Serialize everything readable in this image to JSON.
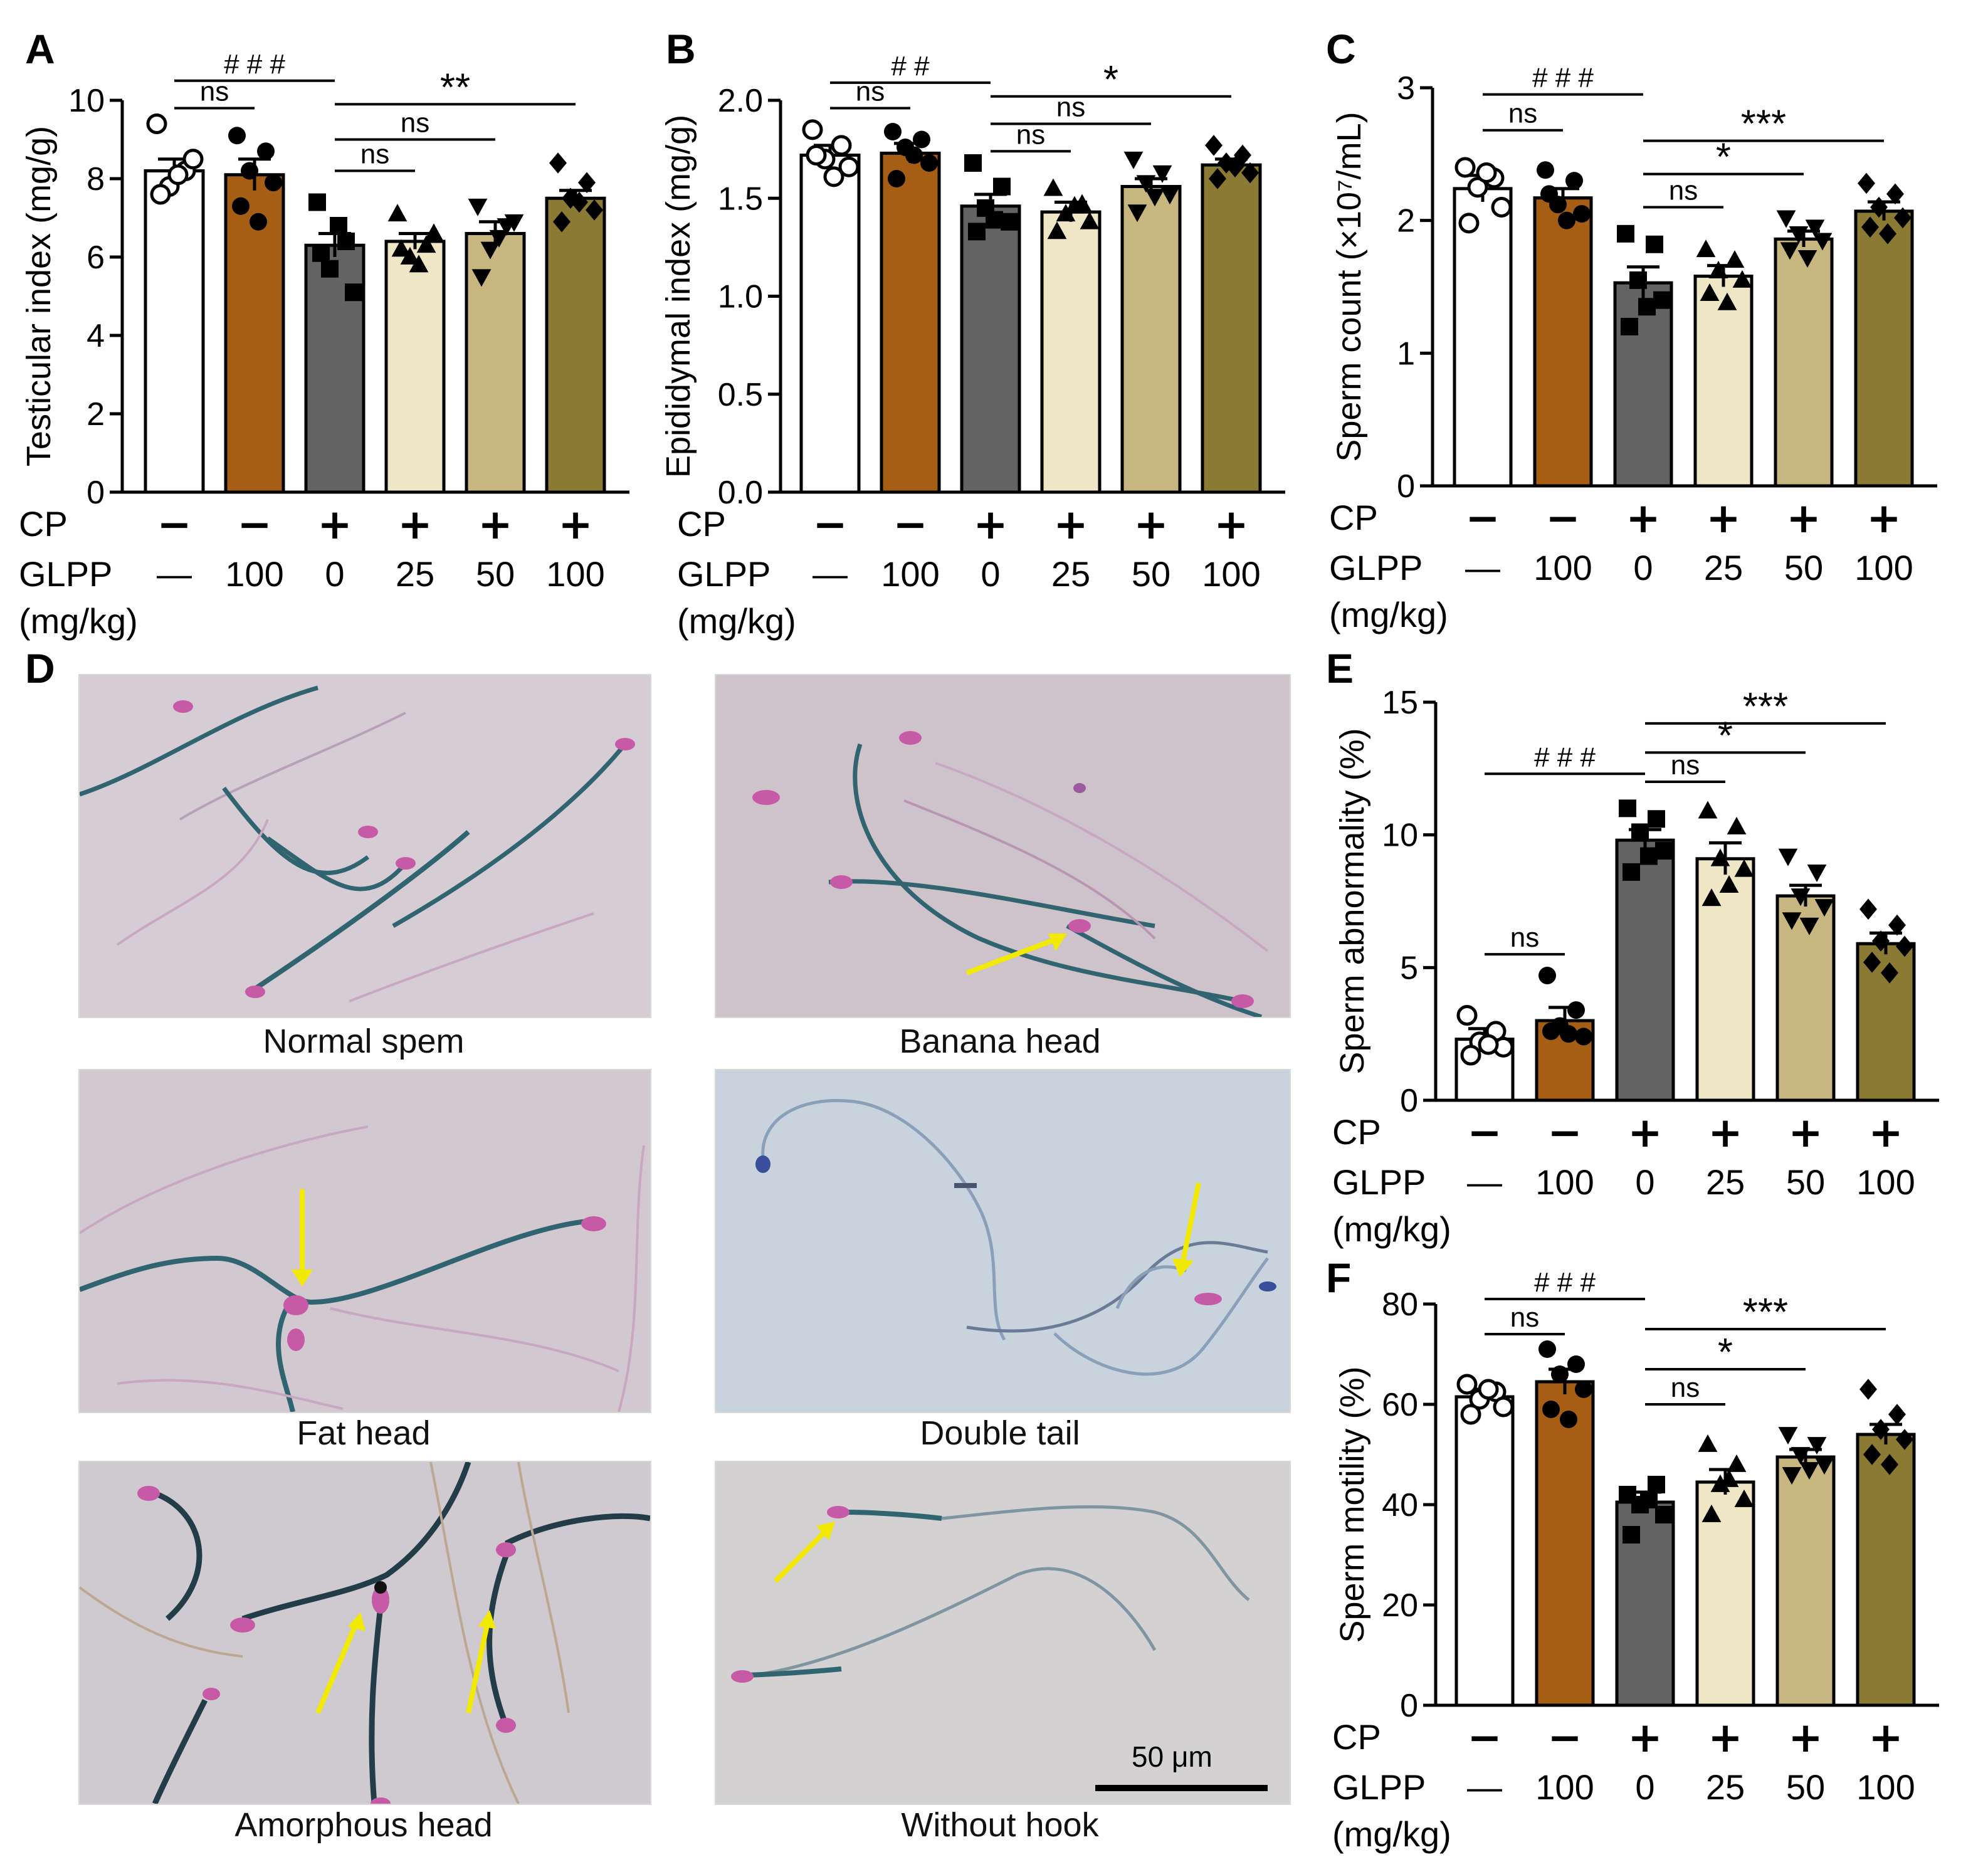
{
  "colors": {
    "groups": [
      "#ffffff",
      "#a55e14",
      "#636363",
      "#efe6c6",
      "#c8b681",
      "#8b7a33"
    ],
    "bar_edge": "#000000",
    "arrow": "#f2ea00"
  },
  "panels": [
    {
      "letter": "A"
    },
    {
      "letter": "B"
    },
    {
      "letter": "C"
    },
    {
      "letter": "D"
    },
    {
      "letter": "E"
    },
    {
      "letter": "F"
    }
  ],
  "treatment_rows": {
    "cp_label": "CP",
    "glpp_label": "GLPP",
    "unit_label": "(mg/kg)",
    "cp": [
      "−",
      "−",
      "+",
      "+",
      "+",
      "+"
    ],
    "glpp": [
      "—",
      "100",
      "0",
      "25",
      "50",
      "100"
    ]
  },
  "chart_data": [
    {
      "id": "A",
      "type": "bar",
      "ylabel": "Testicular index (mg/g)",
      "ylim": [
        0,
        10
      ],
      "yticks": [
        0,
        2,
        4,
        6,
        8,
        10
      ],
      "categories": [
        "CP−/GLPP—",
        "CP−/GLPP100",
        "CP+/GLPP0",
        "CP+/GLPP25",
        "CP+/GLPP50",
        "CP+/GLPP100"
      ],
      "values": [
        8.2,
        8.1,
        6.3,
        6.4,
        6.6,
        7.5
      ],
      "errors": [
        0.3,
        0.4,
        0.3,
        0.2,
        0.3,
        0.2
      ],
      "points": [
        [
          9.4,
          8.2,
          7.8,
          8.5,
          7.6,
          8.1
        ],
        [
          9.1,
          8.7,
          8.2,
          7.9,
          7.3,
          6.9
        ],
        [
          7.4,
          6.4,
          5.7,
          5.1,
          6.1,
          6.8
        ],
        [
          7.1,
          6.3,
          6.0,
          6.6,
          6.2,
          5.8
        ],
        [
          7.3,
          6.8,
          6.2,
          6.9,
          5.5,
          6.5
        ],
        [
          8.4,
          7.9,
          7.5,
          7.2,
          6.9,
          7.4
        ]
      ],
      "markers": [
        "circle-open",
        "circle",
        "square",
        "triangle",
        "triangle-down",
        "diamond"
      ],
      "annotations": [
        {
          "label": "###",
          "from": 0,
          "to": 2,
          "y": 10.5
        },
        {
          "label": "ns",
          "from": 0,
          "to": 1,
          "y": 9.8
        },
        {
          "label": "**",
          "from": 2,
          "to": 5,
          "y": 9.9
        },
        {
          "label": "ns",
          "from": 2,
          "to": 4,
          "y": 9.0
        },
        {
          "label": "ns",
          "from": 2,
          "to": 3,
          "y": 8.2
        }
      ]
    },
    {
      "id": "B",
      "type": "bar",
      "ylabel": "Epididymal index (mg/g)",
      "ylim": [
        0,
        2.0
      ],
      "yticks": [
        0.0,
        0.5,
        1.0,
        1.5,
        2.0
      ],
      "ytick_labels": [
        "0.0",
        "0.5",
        "1.0",
        "1.5",
        "2.0"
      ],
      "categories": [
        "CP−/GLPP—",
        "CP−/GLPP100",
        "CP+/GLPP0",
        "CP+/GLPP25",
        "CP+/GLPP50",
        "CP+/GLPP100"
      ],
      "values": [
        1.72,
        1.73,
        1.46,
        1.43,
        1.56,
        1.67
      ],
      "errors": [
        0.05,
        0.05,
        0.06,
        0.05,
        0.04,
        0.03
      ],
      "points": [
        [
          1.85,
          1.77,
          1.7,
          1.66,
          1.72,
          1.61
        ],
        [
          1.84,
          1.8,
          1.76,
          1.68,
          1.6,
          1.72
        ],
        [
          1.68,
          1.56,
          1.45,
          1.38,
          1.33,
          1.39
        ],
        [
          1.55,
          1.47,
          1.42,
          1.38,
          1.33,
          1.46
        ],
        [
          1.7,
          1.63,
          1.58,
          1.52,
          1.43,
          1.51
        ],
        [
          1.77,
          1.72,
          1.68,
          1.63,
          1.6,
          1.66
        ]
      ],
      "markers": [
        "circle-open",
        "circle",
        "square",
        "triangle",
        "triangle-down",
        "diamond"
      ],
      "annotations": [
        {
          "label": "##",
          "from": 0,
          "to": 2,
          "y": 2.09
        },
        {
          "label": "ns",
          "from": 0,
          "to": 1,
          "y": 1.96
        },
        {
          "label": "*",
          "from": 2,
          "to": 5,
          "y": 2.02
        },
        {
          "label": "ns",
          "from": 2,
          "to": 4,
          "y": 1.88
        },
        {
          "label": "ns",
          "from": 2,
          "to": 3,
          "y": 1.74
        }
      ]
    },
    {
      "id": "C",
      "type": "bar",
      "ylabel": "Sperm count (×10⁷/mL)",
      "ylim": [
        0,
        3
      ],
      "yticks": [
        0,
        1,
        2,
        3
      ],
      "categories": [
        "CP−/GLPP—",
        "CP−/GLPP100",
        "CP+/GLPP0",
        "CP+/GLPP25",
        "CP+/GLPP50",
        "CP+/GLPP100"
      ],
      "values": [
        2.24,
        2.17,
        1.53,
        1.58,
        1.86,
        2.07
      ],
      "errors": [
        0.1,
        0.07,
        0.12,
        0.08,
        0.06,
        0.07
      ],
      "points": [
        [
          2.4,
          2.32,
          2.25,
          2.1,
          1.98,
          2.36
        ],
        [
          2.38,
          2.3,
          2.12,
          2.05,
          2.2,
          2.0
        ],
        [
          1.9,
          1.82,
          1.55,
          1.4,
          1.2,
          1.35
        ],
        [
          1.78,
          1.7,
          1.62,
          1.55,
          1.45,
          1.38
        ],
        [
          2.02,
          1.95,
          1.9,
          1.85,
          1.78,
          1.72
        ],
        [
          2.28,
          2.2,
          2.1,
          2.02,
          1.95,
          1.9
        ]
      ],
      "markers": [
        "circle-open",
        "circle",
        "square",
        "triangle",
        "triangle-down",
        "diamond"
      ],
      "annotations": [
        {
          "label": "###",
          "from": 0,
          "to": 2,
          "y": 2.95
        },
        {
          "label": "ns",
          "from": 0,
          "to": 1,
          "y": 2.68
        },
        {
          "label": "***",
          "from": 2,
          "to": 5,
          "y": 2.6
        },
        {
          "label": "*",
          "from": 2,
          "to": 4,
          "y": 2.35
        },
        {
          "label": "ns",
          "from": 2,
          "to": 3,
          "y": 2.1
        }
      ]
    },
    {
      "id": "E",
      "type": "bar",
      "ylabel": "Sperm abnormality (%)",
      "ylim": [
        0,
        15
      ],
      "yticks": [
        0,
        5,
        10,
        15
      ],
      "categories": [
        "CP−/GLPP—",
        "CP−/GLPP100",
        "CP+/GLPP0",
        "CP+/GLPP25",
        "CP+/GLPP50",
        "CP+/GLPP100"
      ],
      "values": [
        2.3,
        3.0,
        9.8,
        9.1,
        7.7,
        5.9
      ],
      "errors": [
        0.4,
        0.5,
        0.4,
        0.6,
        0.4,
        0.4
      ],
      "points": [
        [
          3.2,
          2.6,
          2.2,
          2.0,
          1.7,
          2.1
        ],
        [
          4.7,
          3.4,
          2.8,
          2.4,
          2.6,
          2.5
        ],
        [
          11.0,
          10.6,
          10.1,
          9.4,
          8.6,
          9.2
        ],
        [
          10.9,
          10.3,
          9.1,
          8.7,
          7.6,
          8.1
        ],
        [
          9.2,
          8.6,
          7.7,
          7.3,
          6.8,
          6.6
        ],
        [
          7.2,
          6.6,
          6.0,
          5.8,
          5.2,
          4.8
        ]
      ],
      "markers": [
        "circle-open",
        "circle",
        "square",
        "triangle",
        "triangle-down",
        "diamond"
      ],
      "annotations": [
        {
          "label": "###",
          "from": 0,
          "to": 2,
          "y": 12.3
        },
        {
          "label": "ns",
          "from": 0,
          "to": 1,
          "y": 5.5
        },
        {
          "label": "***",
          "from": 2,
          "to": 5,
          "y": 14.2
        },
        {
          "label": "*",
          "from": 2,
          "to": 4,
          "y": 13.1
        },
        {
          "label": "ns",
          "from": 2,
          "to": 3,
          "y": 12.0
        }
      ]
    },
    {
      "id": "F",
      "type": "bar",
      "ylabel": "Sperm motility (%)",
      "ylim": [
        0,
        80
      ],
      "yticks": [
        0,
        20,
        40,
        60,
        80
      ],
      "categories": [
        "CP−/GLPP—",
        "CP−/GLPP100",
        "CP+/GLPP0",
        "CP+/GLPP25",
        "CP+/GLPP50",
        "CP+/GLPP100"
      ],
      "values": [
        61.5,
        64.5,
        40.5,
        44.5,
        49.5,
        54.0
      ],
      "errors": [
        1.5,
        2.5,
        2.0,
        2.5,
        1.5,
        2.0
      ],
      "points": [
        [
          64.0,
          62.5,
          61.0,
          59.5,
          58.0,
          63.0
        ],
        [
          71.0,
          68.0,
          66.0,
          63.0,
          59.0,
          57.0
        ],
        [
          42.0,
          44.0,
          40.0,
          38.0,
          34.0,
          41.0
        ],
        [
          52.0,
          48.0,
          44.0,
          41.0,
          38.0,
          45.0
        ],
        [
          54.0,
          52.0,
          50.0,
          48.0,
          46.0,
          47.0
        ],
        [
          63.0,
          58.0,
          55.0,
          53.0,
          50.0,
          48.0
        ]
      ],
      "markers": [
        "circle-open",
        "circle",
        "square",
        "triangle",
        "triangle-down",
        "diamond"
      ],
      "annotations": [
        {
          "label": "###",
          "from": 0,
          "to": 2,
          "y": 81.0
        },
        {
          "label": "ns",
          "from": 0,
          "to": 1,
          "y": 74.0
        },
        {
          "label": "***",
          "from": 2,
          "to": 5,
          "y": 75.0
        },
        {
          "label": "*",
          "from": 2,
          "to": 4,
          "y": 67.0
        },
        {
          "label": "ns",
          "from": 2,
          "to": 3,
          "y": 60.0
        }
      ]
    }
  ],
  "micrographs": [
    {
      "caption": "Normal spem"
    },
    {
      "caption": "Banana head"
    },
    {
      "caption": "Fat head"
    },
    {
      "caption": "Double tail"
    },
    {
      "caption": "Amorphous head"
    },
    {
      "caption": "Without hook"
    }
  ],
  "scale_bar": {
    "label": "50 μm"
  }
}
